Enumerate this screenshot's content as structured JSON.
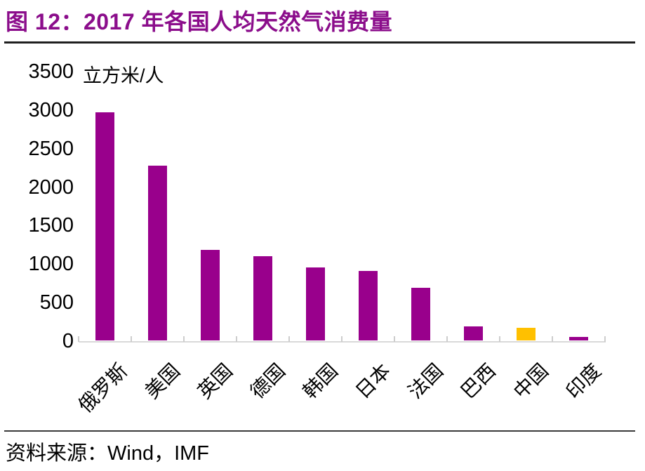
{
  "title": "图 12：2017 年各国人均天然气消费量",
  "source": "资料来源：Wind，IMF",
  "colors": {
    "title": "#8b0d8b",
    "bar": "#99008c",
    "highlight_bar": "#ffc000",
    "axis_line": "#d9d9d9",
    "tick_mark": "#cdcdcd",
    "text": "#000000",
    "top_rule": "#1f1f1f",
    "bottom_rule": "#3a3a3a"
  },
  "chart_data": {
    "type": "bar",
    "title": "2017 年各国人均天然气消费量",
    "unit_label": "立方米/人",
    "xlabel": "",
    "ylabel": "立方米/人",
    "categories": [
      "俄罗斯",
      "美国",
      "英国",
      "德国",
      "韩国",
      "日本",
      "法国",
      "巴西",
      "中国",
      "印度"
    ],
    "values": [
      2960,
      2270,
      1180,
      1090,
      950,
      900,
      680,
      185,
      160,
      45
    ],
    "bar_colors": [
      "#99008c",
      "#99008c",
      "#99008c",
      "#99008c",
      "#99008c",
      "#99008c",
      "#99008c",
      "#99008c",
      "#ffc000",
      "#99008c"
    ],
    "highlighted_category": "中国",
    "ylim": [
      0,
      3500
    ],
    "yticks": [
      0,
      500,
      1000,
      1500,
      2000,
      2500,
      3000,
      3500
    ],
    "grid": false,
    "legend_position": "none",
    "xlabel_rotation": -45
  }
}
